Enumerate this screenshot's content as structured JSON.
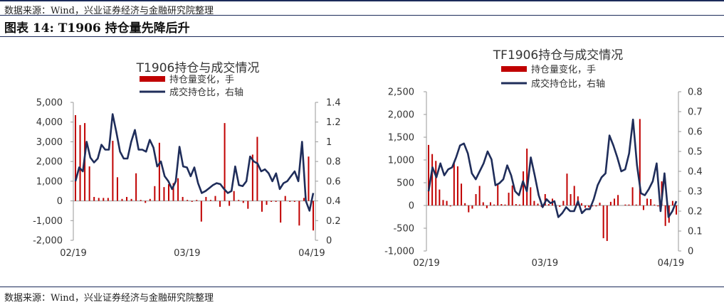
{
  "header": {
    "source_top": "数据来源：Wind，兴业证券经济与金融研究院整理",
    "figure_title": "图表 14:  T1906 持仓量先降后升",
    "source_bottom": "数据来源：Wind，兴业证券经济与金融研究院整理"
  },
  "colors": {
    "bar": "#c00000",
    "line": "#1f2d5a",
    "rule": "#1b2a5a"
  },
  "chart_data": [
    {
      "type": "bar+line",
      "title": "T1906持仓与成交情况",
      "legend": [
        "持仓量变化，手",
        "成交持仓比，右轴"
      ],
      "legend_position": "top",
      "xlabel": "",
      "ylabel": "",
      "x_tick_labels": [
        "02/19",
        "03/19",
        "04/19"
      ],
      "ylim_left": [
        -2000,
        5000
      ],
      "yticks_left": [
        "-2,000",
        "-1,000",
        "0",
        "1,000",
        "2,000",
        "3,000",
        "4,000",
        "5,000"
      ],
      "ylim_right": [
        0,
        1.4
      ],
      "yticks_right": [
        "0",
        "0.2",
        "0.4",
        "0.6",
        "0.8",
        "1",
        "1.2",
        "1.4"
      ],
      "grid": false,
      "series": [
        {
          "name": "持仓量变化，手",
          "type": "bar",
          "values": [
            4350,
            3850,
            3950,
            1750,
            200,
            150,
            150,
            150,
            3050,
            1200,
            100,
            200,
            100,
            1400,
            50,
            -100,
            100,
            750,
            2950,
            700,
            850,
            900,
            1150,
            200,
            50,
            -50,
            50,
            -1050,
            200,
            50,
            250,
            -300,
            3950,
            -250,
            500,
            50,
            -100,
            -400,
            2350,
            3250,
            -550,
            -200,
            -50,
            -50,
            -1100,
            250,
            -50,
            -50,
            -1250,
            150,
            2250,
            -1500
          ]
        },
        {
          "name": "成交持仓比，右轴",
          "type": "line",
          "values": [
            0.6,
            0.74,
            0.7,
            1.0,
            0.84,
            0.79,
            0.83,
            0.97,
            0.92,
            0.92,
            1.28,
            1.1,
            0.9,
            0.83,
            0.83,
            1.0,
            1.12,
            0.92,
            0.92,
            0.9,
            1.02,
            0.94,
            0.75,
            0.8,
            0.65,
            0.6,
            0.52,
            0.6,
            0.95,
            0.75,
            0.74,
            0.65,
            0.74,
            0.58,
            0.48,
            0.5,
            0.53,
            0.56,
            0.58,
            0.57,
            0.52,
            0.48,
            0.5,
            0.75,
            0.56,
            0.55,
            0.6,
            0.85,
            0.8,
            0.78,
            0.7,
            0.72,
            0.68,
            0.6,
            0.68,
            0.52,
            0.58,
            0.6,
            0.65,
            0.7,
            0.6,
            1.0,
            0.4,
            0.3,
            0.48
          ]
        }
      ]
    },
    {
      "type": "bar+line",
      "title": "TF1906持仓与成交情况",
      "legend": [
        "持仓量变化，手",
        "成交持仓比，右轴"
      ],
      "legend_position": "top",
      "xlabel": "",
      "ylabel": "",
      "x_tick_labels": [
        "02/19",
        "03/19",
        "04/19"
      ],
      "ylim_left": [
        -1000,
        2500
      ],
      "yticks_left": [
        "-1,000",
        "-500",
        "0",
        "500",
        "1,000",
        "1,500",
        "2,000",
        "2,500"
      ],
      "ylim_right": [
        0,
        0.8
      ],
      "yticks_right": [
        "0",
        "0.1",
        "0.2",
        "0.3",
        "0.4",
        "0.5",
        "0.6",
        "0.7",
        "0.8"
      ],
      "grid": false,
      "series": [
        {
          "name": "持仓量变化，手",
          "type": "bar",
          "values": [
            1330,
            1130,
            980,
            350,
            120,
            100,
            -20,
            950,
            860,
            480,
            50,
            -150,
            -70,
            250,
            430,
            70,
            -60,
            70,
            20,
            470,
            30,
            20,
            280,
            440,
            30,
            20,
            750,
            1250,
            400,
            100,
            40,
            -30,
            250,
            30,
            150,
            -70,
            -30,
            100,
            700,
            250,
            430,
            200,
            50,
            -50,
            -40,
            -20,
            -20,
            60,
            -720,
            -780,
            80,
            150,
            230,
            0,
            20,
            20,
            400,
            20,
            1900,
            -100,
            150,
            140,
            20,
            -20,
            530,
            -450,
            -380,
            100,
            -200
          ]
        },
        {
          "name": "成交持仓比，右轴",
          "type": "line",
          "values": [
            0.3,
            0.42,
            0.37,
            0.44,
            0.38,
            0.41,
            0.42,
            0.47,
            0.53,
            0.54,
            0.49,
            0.39,
            0.36,
            0.4,
            0.44,
            0.5,
            0.46,
            0.33,
            0.34,
            0.36,
            0.43,
            0.38,
            0.3,
            0.28,
            0.35,
            0.3,
            0.47,
            0.38,
            0.28,
            0.22,
            0.26,
            0.24,
            0.25,
            0.17,
            0.19,
            0.22,
            0.2,
            0.2,
            0.25,
            0.19,
            0.21,
            0.21,
            0.26,
            0.33,
            0.37,
            0.39,
            0.58,
            0.53,
            0.47,
            0.4,
            0.41,
            0.49,
            0.66,
            0.43,
            0.29,
            0.28,
            0.31,
            0.35,
            0.44,
            0.2,
            0.39,
            0.17,
            0.2,
            0.25
          ]
        }
      ]
    }
  ]
}
